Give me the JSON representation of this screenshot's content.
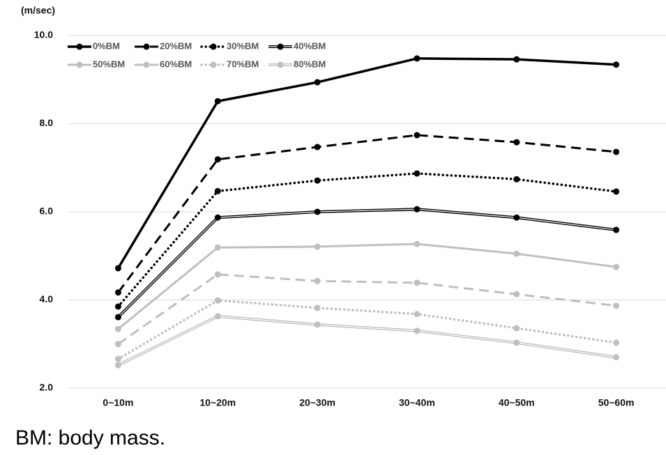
{
  "chart_data": {
    "type": "line",
    "y_label": "(m/sec)",
    "caption": "BM: body mass.",
    "categories": [
      "0~10m",
      "10~20m",
      "20~30m",
      "30~40m",
      "40~50m",
      "50~60m"
    ],
    "series": [
      {
        "name": "0%BM",
        "color": "#000000",
        "style": "solid",
        "values": [
          4.72,
          8.51,
          8.94,
          9.48,
          9.46,
          9.34
        ]
      },
      {
        "name": "20%BM",
        "color": "#000000",
        "style": "dashed",
        "values": [
          4.17,
          7.19,
          7.47,
          7.74,
          7.58,
          7.36
        ]
      },
      {
        "name": "30%BM",
        "color": "#000000",
        "style": "dotted",
        "values": [
          3.85,
          6.47,
          6.71,
          6.87,
          6.74,
          6.46
        ]
      },
      {
        "name": "40%BM",
        "color": "#000000",
        "style": "double",
        "values": [
          3.61,
          5.87,
          6.0,
          6.06,
          5.87,
          5.59
        ]
      },
      {
        "name": "50%BM",
        "color": "#bfbfbf",
        "style": "solid",
        "values": [
          3.34,
          5.19,
          5.21,
          5.27,
          5.05,
          4.75
        ]
      },
      {
        "name": "60%BM",
        "color": "#bfbfbf",
        "style": "dashed",
        "values": [
          3.0,
          4.58,
          4.43,
          4.39,
          4.13,
          3.87
        ]
      },
      {
        "name": "70%BM",
        "color": "#bfbfbf",
        "style": "dotted",
        "values": [
          2.66,
          3.99,
          3.82,
          3.68,
          3.36,
          3.03
        ]
      },
      {
        "name": "80%BM",
        "color": "#bfbfbf",
        "style": "double",
        "values": [
          2.52,
          3.63,
          3.44,
          3.3,
          3.03,
          2.7
        ]
      }
    ],
    "ylim": [
      2,
      10
    ],
    "yticks": [
      {
        "value": 2,
        "label": "2.0"
      },
      {
        "value": 4,
        "label": "4.0"
      },
      {
        "value": 6,
        "label": "6.0"
      },
      {
        "value": 8,
        "label": "8.0"
      },
      {
        "value": 10,
        "label": "10.0"
      }
    ],
    "grid": true,
    "legend": "top-left"
  }
}
